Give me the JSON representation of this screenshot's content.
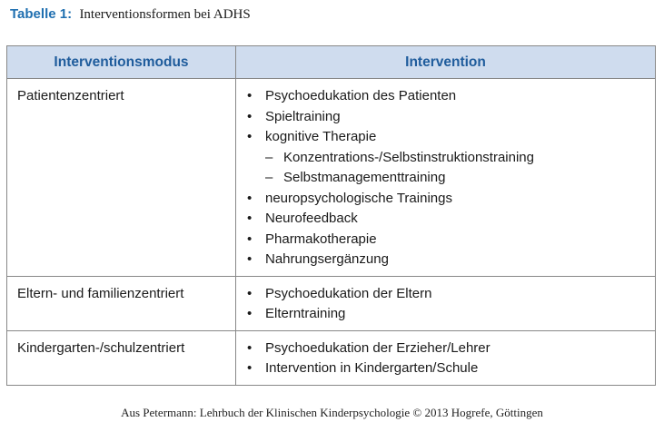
{
  "caption": {
    "label": "Tabelle 1:",
    "title": "Interventionsformen bei ADHS"
  },
  "table": {
    "headers": [
      "Interventionsmodus",
      "Intervention"
    ],
    "rows": [
      {
        "mode": "Patientenzentriert",
        "items": [
          {
            "text": "Psychoedukation des Patienten"
          },
          {
            "text": "Spieltraining"
          },
          {
            "text": "kognitive Therapie"
          },
          {
            "text": "Konzentrations-/Selbstinstruktionstraining",
            "sub": true
          },
          {
            "text": "Selbstmanagementtraining",
            "sub": true
          },
          {
            "text": "neuropsychologische Trainings"
          },
          {
            "text": "Neurofeedback"
          },
          {
            "text": "Pharmakotherapie"
          },
          {
            "text": "Nahrungsergänzung"
          }
        ]
      },
      {
        "mode": "Eltern- und familienzentriert",
        "items": [
          {
            "text": "Psychoedukation der Eltern"
          },
          {
            "text": "Elterntraining"
          }
        ]
      },
      {
        "mode": "Kindergarten-/schulzentriert",
        "items": [
          {
            "text": "Psychoedukation der Erzieher/Lehrer"
          },
          {
            "text": "Intervention in Kindergarten/Schule"
          }
        ]
      }
    ]
  },
  "source": "Aus Petermann: Lehrbuch der Klinischen Kinderpsychologie © 2013 Hogrefe, Göttingen",
  "colors": {
    "caption_label": "#1f6fb0",
    "header_bg": "#cfdcee",
    "header_text": "#1f5c9c",
    "border": "#888888"
  }
}
